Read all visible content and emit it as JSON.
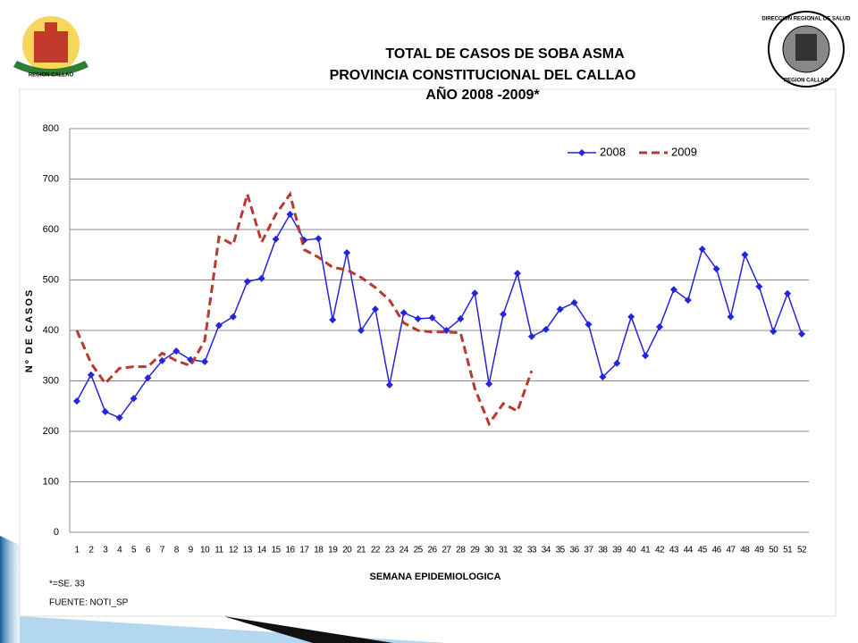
{
  "logos": {
    "left": "REGION CALLAO",
    "right_top": "DIRECCION REGIONAL DE SALUD",
    "right_bottom": "REGION CALLAO"
  },
  "chart_data": {
    "type": "line",
    "title": [
      "TOTAL DE CASOS DE SOBA ASMA",
      "PROVINCIA CONSTITUCIONAL DEL CALLAO",
      "AÑO 2008 -2009*"
    ],
    "y_label": "Nº DE CASOS",
    "x_label": "SEMANA EPIDEMIOLOGICA",
    "notes": [
      "*=SE. 33",
      "FUENTE: NOTI_SP"
    ],
    "categories": [
      "1",
      "2",
      "3",
      "4",
      "5",
      "6",
      "7",
      "8",
      "9",
      "10",
      "11",
      "12",
      "13",
      "14",
      "15",
      "16",
      "17",
      "18",
      "19",
      "20",
      "21",
      "22",
      "23",
      "24",
      "25",
      "26",
      "27",
      "28",
      "29",
      "30",
      "31",
      "32",
      "33",
      "34",
      "35",
      "36",
      "37",
      "38",
      "39",
      "40",
      "41",
      "42",
      "43",
      "44",
      "45",
      "46",
      "47",
      "48",
      "49",
      "50",
      "51",
      "52"
    ],
    "series": [
      {
        "name": "2008",
        "color": "#2424dc",
        "dashed": false,
        "marker": "diamond",
        "values": [
          260,
          312,
          239,
          227,
          265,
          306,
          340,
          359,
          342,
          338,
          410,
          427,
          497,
          503,
          581,
          630,
          579,
          582,
          421,
          554,
          400,
          442,
          292,
          435,
          423,
          425,
          400,
          423,
          474,
          294,
          432,
          513,
          388,
          402,
          442,
          455,
          412,
          308,
          335,
          427,
          350,
          407,
          481,
          460,
          561,
          522,
          427,
          550,
          487,
          398,
          473,
          393
        ]
      },
      {
        "name": "2009",
        "color": "#b83a2e",
        "dashed": true,
        "marker": null,
        "values": [
          400,
          335,
          295,
          325,
          328,
          328,
          355,
          340,
          330,
          380,
          585,
          570,
          670,
          575,
          630,
          670,
          560,
          545,
          525,
          520,
          505,
          485,
          460,
          415,
          400,
          397,
          397,
          395,
          285,
          215,
          255,
          240,
          320,
          null,
          null,
          null,
          null,
          null,
          null,
          null,
          null,
          null,
          null,
          null,
          null,
          null,
          null,
          null,
          null,
          null,
          null,
          null
        ]
      }
    ],
    "ylim": [
      0,
      800
    ],
    "yticks": [
      0,
      100,
      200,
      300,
      400,
      500,
      600,
      700,
      800
    ],
    "grid": true,
    "legend": "top-right"
  }
}
